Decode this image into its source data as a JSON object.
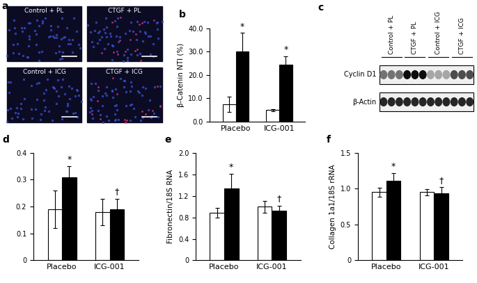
{
  "chart_data": [
    {
      "type": "bar",
      "title": "b",
      "y_label": "β-Catenin NTI (%)",
      "categories": [
        "Placebo",
        "ICG-001"
      ],
      "series": [
        {
          "color": "#ffffff",
          "values": [
            7.5,
            5.0
          ],
          "errors": [
            3.3,
            0.5
          ]
        },
        {
          "color": "#000000",
          "values": [
            30.0,
            24.5
          ],
          "errors": [
            8.0,
            3.5
          ],
          "annotations": [
            "*",
            "*"
          ]
        }
      ],
      "ylim": [
        0,
        40
      ],
      "yticks": [
        {
          "value": 0,
          "label": "0.0"
        },
        {
          "value": 10,
          "label": "10.0"
        },
        {
          "value": 20,
          "label": "20.0"
        },
        {
          "value": 30,
          "label": "30.0"
        },
        {
          "value": 40,
          "label": "40.0"
        }
      ]
    },
    {
      "type": "bar",
      "title": "d",
      "categories": [
        "Placebo",
        "ICG-001"
      ],
      "series": [
        {
          "color": "#ffffff",
          "values": [
            0.19,
            0.18
          ],
          "errors": [
            0.07,
            0.05
          ]
        },
        {
          "color": "#000000",
          "values": [
            0.31,
            0.19
          ],
          "errors": [
            0.04,
            0.04
          ],
          "annotations": [
            "*",
            "†"
          ]
        }
      ],
      "ylim": [
        0,
        0.4
      ],
      "yticks": [
        {
          "value": 0,
          "label": "0"
        },
        {
          "value": 0.1,
          "label": "0.1"
        },
        {
          "value": 0.2,
          "label": "0.2"
        },
        {
          "value": 0.3,
          "label": "0.3"
        },
        {
          "value": 0.4,
          "label": "0.4"
        }
      ]
    },
    {
      "type": "bar",
      "title": "e",
      "y_label": "Fibronectin/18S RNA",
      "categories": [
        "Placebo",
        "ICG-001"
      ],
      "series": [
        {
          "color": "#ffffff",
          "values": [
            0.88,
            1.0
          ],
          "errors": [
            0.09,
            0.11
          ]
        },
        {
          "color": "#000000",
          "values": [
            1.34,
            0.92
          ],
          "errors": [
            0.27,
            0.1
          ],
          "annotations": [
            "*",
            "†"
          ]
        }
      ],
      "ylim": [
        0,
        2.0
      ],
      "yticks": [
        {
          "value": 0,
          "label": "0"
        },
        {
          "value": 0.4,
          "label": "0.4"
        },
        {
          "value": 0.8,
          "label": "0.8"
        },
        {
          "value": 1.2,
          "label": "1.2"
        },
        {
          "value": 1.6,
          "label": "1.6"
        },
        {
          "value": 2.0,
          "label": "2.0"
        }
      ]
    },
    {
      "type": "bar",
      "title": "f",
      "y_label": "Collagen 1a1/18S rRNA",
      "categories": [
        "Placebo",
        "ICG-001"
      ],
      "series": [
        {
          "color": "#ffffff",
          "values": [
            0.95,
            0.95
          ],
          "errors": [
            0.06,
            0.04
          ]
        },
        {
          "color": "#000000",
          "values": [
            1.11,
            0.94
          ],
          "errors": [
            0.11,
            0.08
          ],
          "annotations": [
            "*",
            "†"
          ]
        }
      ],
      "ylim": [
        0,
        1.5
      ],
      "yticks": [
        {
          "value": 0,
          "label": "0"
        },
        {
          "value": 0.5,
          "label": "0.5"
        },
        {
          "value": 1.0,
          "label": "1.0"
        },
        {
          "value": 1.5,
          "label": "1.5"
        }
      ]
    }
  ],
  "panel_a": {
    "label": "a",
    "images": [
      "Control + PL",
      "CTGF + PL",
      "Control + ICG",
      "CTGF + ICG"
    ]
  },
  "panel_c": {
    "label": "c",
    "lanes": [
      "Control + PL",
      "CTGF + PL",
      "Control + ICG",
      "CTGF + ICG"
    ],
    "rows": [
      "Cyclin D1",
      "β-Actin"
    ]
  }
}
